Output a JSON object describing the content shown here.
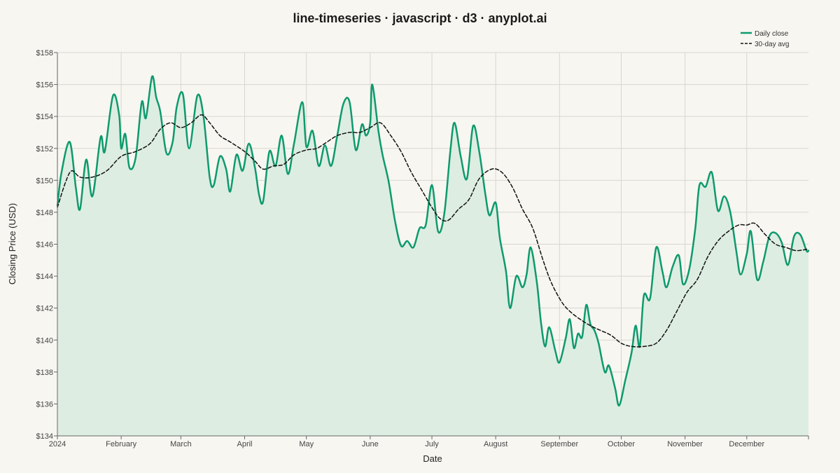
{
  "colors": {
    "background": "#F8F6F1",
    "close_line": "#0E9A6E",
    "close_fill": "#DDEDE2",
    "avg_line": "#111111"
  },
  "chart_data": {
    "type": "line",
    "title": "line-timeseries · javascript · d3 · anyplot.ai",
    "xlabel": "Date",
    "ylabel": "Closing Price (USD)",
    "x_range": [
      "2024-01-01",
      "2024-12-31"
    ],
    "ylim": [
      134,
      158
    ],
    "y_ticks": [
      134,
      136,
      138,
      140,
      142,
      144,
      146,
      148,
      150,
      152,
      154,
      156,
      158
    ],
    "y_tick_labels": [
      "$134",
      "$136",
      "$138",
      "$140",
      "$142",
      "$144",
      "$146",
      "$148",
      "$150",
      "$152",
      "$154",
      "$156",
      "$158"
    ],
    "x_tick_labels": [
      "2024",
      "February",
      "March",
      "April",
      "May",
      "June",
      "July",
      "August",
      "September",
      "October",
      "November",
      "December"
    ],
    "x_tick_dates": [
      "2024-01-01",
      "2024-02-01",
      "2024-03-01",
      "2024-04-01",
      "2024-05-01",
      "2024-06-01",
      "2024-07-01",
      "2024-08-01",
      "2024-09-01",
      "2024-10-01",
      "2024-11-01",
      "2024-12-01"
    ],
    "grid": true,
    "legend_position": "top-right",
    "series": [
      {
        "name": "Daily close",
        "style": "solid",
        "area_fill": true,
        "points": [
          [
            "2024-01-01",
            148.4
          ],
          [
            "2024-01-03",
            150.5
          ],
          [
            "2024-01-07",
            152.4
          ],
          [
            "2024-01-10",
            149.5
          ],
          [
            "2024-01-12",
            148.2
          ],
          [
            "2024-01-15",
            151.3
          ],
          [
            "2024-01-18",
            149.0
          ],
          [
            "2024-01-22",
            152.7
          ],
          [
            "2024-01-24",
            151.8
          ],
          [
            "2024-01-28",
            155.3
          ],
          [
            "2024-01-31",
            154.1
          ],
          [
            "2024-02-01",
            152.0
          ],
          [
            "2024-02-03",
            152.9
          ],
          [
            "2024-02-05",
            150.8
          ],
          [
            "2024-02-08",
            151.4
          ],
          [
            "2024-02-11",
            154.9
          ],
          [
            "2024-02-13",
            153.9
          ],
          [
            "2024-02-16",
            156.5
          ],
          [
            "2024-02-18",
            155.2
          ],
          [
            "2024-02-20",
            154.3
          ],
          [
            "2024-02-23",
            151.7
          ],
          [
            "2024-02-26",
            152.4
          ],
          [
            "2024-02-28",
            154.6
          ],
          [
            "2024-03-02",
            155.4
          ],
          [
            "2024-03-05",
            152.0
          ],
          [
            "2024-03-09",
            155.3
          ],
          [
            "2024-03-12",
            154.0
          ],
          [
            "2024-03-15",
            150.2
          ],
          [
            "2024-03-17",
            149.7
          ],
          [
            "2024-03-20",
            151.5
          ],
          [
            "2024-03-23",
            150.7
          ],
          [
            "2024-03-25",
            149.3
          ],
          [
            "2024-03-28",
            151.6
          ],
          [
            "2024-03-31",
            150.6
          ],
          [
            "2024-04-03",
            152.3
          ],
          [
            "2024-04-06",
            150.8
          ],
          [
            "2024-04-08",
            149.1
          ],
          [
            "2024-04-10",
            148.7
          ],
          [
            "2024-04-13",
            151.8
          ],
          [
            "2024-04-16",
            150.9
          ],
          [
            "2024-04-19",
            152.8
          ],
          [
            "2024-04-22",
            150.4
          ],
          [
            "2024-04-25",
            152.3
          ],
          [
            "2024-04-29",
            154.9
          ],
          [
            "2024-05-01",
            152.1
          ],
          [
            "2024-05-04",
            153.1
          ],
          [
            "2024-05-07",
            150.9
          ],
          [
            "2024-05-10",
            152.2
          ],
          [
            "2024-05-13",
            150.9
          ],
          [
            "2024-05-16",
            152.8
          ],
          [
            "2024-05-19",
            154.8
          ],
          [
            "2024-05-22",
            154.9
          ],
          [
            "2024-05-25",
            151.9
          ],
          [
            "2024-05-28",
            153.5
          ],
          [
            "2024-05-30",
            152.8
          ],
          [
            "2024-06-01",
            153.6
          ],
          [
            "2024-06-02",
            156.0
          ],
          [
            "2024-06-05",
            153.1
          ],
          [
            "2024-06-07",
            151.6
          ],
          [
            "2024-06-10",
            149.9
          ],
          [
            "2024-06-13",
            147.5
          ],
          [
            "2024-06-16",
            145.9
          ],
          [
            "2024-06-19",
            146.2
          ],
          [
            "2024-06-22",
            145.8
          ],
          [
            "2024-06-25",
            147.0
          ],
          [
            "2024-06-28",
            147.2
          ],
          [
            "2024-07-01",
            149.7
          ],
          [
            "2024-07-04",
            146.8
          ],
          [
            "2024-07-07",
            147.9
          ],
          [
            "2024-07-10",
            151.9
          ],
          [
            "2024-07-12",
            153.6
          ],
          [
            "2024-07-15",
            151.5
          ],
          [
            "2024-07-18",
            150.1
          ],
          [
            "2024-07-21",
            153.4
          ],
          [
            "2024-07-24",
            151.8
          ],
          [
            "2024-07-27",
            149.1
          ],
          [
            "2024-07-29",
            147.8
          ],
          [
            "2024-08-01",
            148.6
          ],
          [
            "2024-08-03",
            146.4
          ],
          [
            "2024-08-06",
            144.3
          ],
          [
            "2024-08-08",
            142.0
          ],
          [
            "2024-08-11",
            144.0
          ],
          [
            "2024-08-14",
            143.3
          ],
          [
            "2024-08-16",
            144.1
          ],
          [
            "2024-08-18",
            145.8
          ],
          [
            "2024-08-21",
            143.6
          ],
          [
            "2024-08-23",
            141.1
          ],
          [
            "2024-08-25",
            139.6
          ],
          [
            "2024-08-27",
            140.8
          ],
          [
            "2024-08-30",
            139.3
          ],
          [
            "2024-09-01",
            138.6
          ],
          [
            "2024-09-04",
            140.1
          ],
          [
            "2024-09-06",
            141.3
          ],
          [
            "2024-09-08",
            139.5
          ],
          [
            "2024-09-10",
            140.4
          ],
          [
            "2024-09-12",
            140.2
          ],
          [
            "2024-09-14",
            142.2
          ],
          [
            "2024-09-16",
            141.0
          ],
          [
            "2024-09-18",
            140.6
          ],
          [
            "2024-09-20",
            139.8
          ],
          [
            "2024-09-23",
            138.0
          ],
          [
            "2024-09-25",
            138.4
          ],
          [
            "2024-09-28",
            137.0
          ],
          [
            "2024-09-30",
            135.9
          ],
          [
            "2024-10-03",
            137.5
          ],
          [
            "2024-10-06",
            139.2
          ],
          [
            "2024-10-08",
            140.9
          ],
          [
            "2024-10-10",
            139.6
          ],
          [
            "2024-10-12",
            142.8
          ],
          [
            "2024-10-15",
            142.6
          ],
          [
            "2024-10-18",
            145.8
          ],
          [
            "2024-10-21",
            144.3
          ],
          [
            "2024-10-23",
            143.3
          ],
          [
            "2024-10-26",
            144.6
          ],
          [
            "2024-10-29",
            145.3
          ],
          [
            "2024-10-31",
            143.5
          ],
          [
            "2024-11-03",
            144.4
          ],
          [
            "2024-11-06",
            147.0
          ],
          [
            "2024-11-08",
            149.7
          ],
          [
            "2024-11-11",
            149.6
          ],
          [
            "2024-11-14",
            150.5
          ],
          [
            "2024-11-17",
            148.1
          ],
          [
            "2024-11-20",
            149.0
          ],
          [
            "2024-11-23",
            148.0
          ],
          [
            "2024-11-26",
            145.5
          ],
          [
            "2024-11-28",
            144.1
          ],
          [
            "2024-12-01",
            145.4
          ],
          [
            "2024-12-03",
            146.8
          ],
          [
            "2024-12-06",
            143.8
          ],
          [
            "2024-12-09",
            144.9
          ],
          [
            "2024-12-12",
            146.5
          ],
          [
            "2024-12-15",
            146.7
          ],
          [
            "2024-12-18",
            146.1
          ],
          [
            "2024-12-21",
            144.7
          ],
          [
            "2024-12-24",
            146.5
          ],
          [
            "2024-12-27",
            146.6
          ],
          [
            "2024-12-30",
            145.6
          ],
          [
            "2024-12-31",
            145.6
          ]
        ]
      },
      {
        "name": "30-day avg",
        "style": "dashed",
        "area_fill": false,
        "points": [
          [
            "2024-01-01",
            148.3
          ],
          [
            "2024-01-05",
            149.9
          ],
          [
            "2024-01-08",
            150.6
          ],
          [
            "2024-01-12",
            150.2
          ],
          [
            "2024-01-18",
            150.2
          ],
          [
            "2024-01-25",
            150.6
          ],
          [
            "2024-02-01",
            151.5
          ],
          [
            "2024-02-08",
            151.8
          ],
          [
            "2024-02-15",
            152.3
          ],
          [
            "2024-02-20",
            153.2
          ],
          [
            "2024-02-25",
            153.6
          ],
          [
            "2024-03-01",
            153.3
          ],
          [
            "2024-03-06",
            153.6
          ],
          [
            "2024-03-11",
            154.1
          ],
          [
            "2024-03-15",
            153.6
          ],
          [
            "2024-03-20",
            152.8
          ],
          [
            "2024-03-25",
            152.4
          ],
          [
            "2024-04-01",
            151.8
          ],
          [
            "2024-04-06",
            151.2
          ],
          [
            "2024-04-10",
            150.7
          ],
          [
            "2024-04-15",
            150.9
          ],
          [
            "2024-04-20",
            151.0
          ],
          [
            "2024-04-25",
            151.6
          ],
          [
            "2024-05-01",
            151.9
          ],
          [
            "2024-05-06",
            152.0
          ],
          [
            "2024-05-11",
            152.4
          ],
          [
            "2024-05-16",
            152.8
          ],
          [
            "2024-05-22",
            153.0
          ],
          [
            "2024-05-27",
            153.0
          ],
          [
            "2024-06-01",
            153.3
          ],
          [
            "2024-06-06",
            153.6
          ],
          [
            "2024-06-11",
            152.8
          ],
          [
            "2024-06-16",
            151.8
          ],
          [
            "2024-06-21",
            150.5
          ],
          [
            "2024-06-26",
            149.4
          ],
          [
            "2024-07-01",
            148.3
          ],
          [
            "2024-07-05",
            147.6
          ],
          [
            "2024-07-09",
            147.5
          ],
          [
            "2024-07-14",
            148.2
          ],
          [
            "2024-07-19",
            148.8
          ],
          [
            "2024-07-24",
            150.1
          ],
          [
            "2024-07-30",
            150.7
          ],
          [
            "2024-08-04",
            150.5
          ],
          [
            "2024-08-09",
            149.6
          ],
          [
            "2024-08-14",
            148.2
          ],
          [
            "2024-08-19",
            147.0
          ],
          [
            "2024-08-24",
            145.0
          ],
          [
            "2024-08-28",
            143.6
          ],
          [
            "2024-09-02",
            142.4
          ],
          [
            "2024-09-06",
            141.8
          ],
          [
            "2024-09-11",
            141.3
          ],
          [
            "2024-09-16",
            140.9
          ],
          [
            "2024-09-21",
            140.6
          ],
          [
            "2024-09-26",
            140.3
          ],
          [
            "2024-10-01",
            139.8
          ],
          [
            "2024-10-06",
            139.6
          ],
          [
            "2024-10-12",
            139.6
          ],
          [
            "2024-10-18",
            139.8
          ],
          [
            "2024-10-23",
            140.6
          ],
          [
            "2024-10-28",
            141.8
          ],
          [
            "2024-11-02",
            143.0
          ],
          [
            "2024-11-07",
            143.8
          ],
          [
            "2024-11-12",
            145.2
          ],
          [
            "2024-11-17",
            146.2
          ],
          [
            "2024-11-22",
            146.8
          ],
          [
            "2024-11-27",
            147.2
          ],
          [
            "2024-12-01",
            147.2
          ],
          [
            "2024-12-05",
            147.3
          ],
          [
            "2024-12-10",
            146.6
          ],
          [
            "2024-12-15",
            146.0
          ],
          [
            "2024-12-20",
            145.8
          ],
          [
            "2024-12-25",
            145.6
          ],
          [
            "2024-12-31",
            145.7
          ]
        ]
      }
    ]
  }
}
